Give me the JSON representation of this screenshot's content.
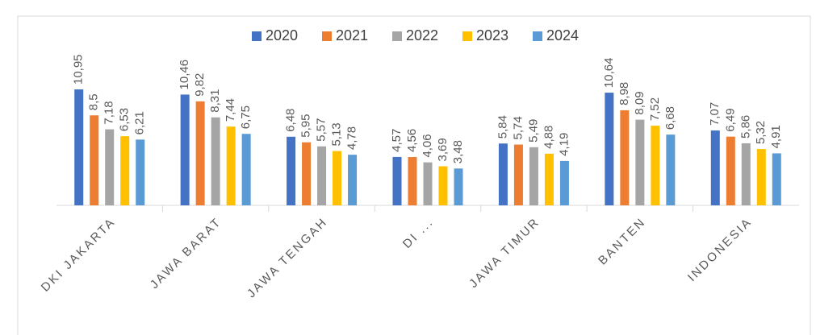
{
  "chart_data": {
    "type": "bar",
    "categories": [
      "DKI JAKARTA",
      "JAWA BARAT",
      "JAWA TENGAH",
      "DI ...",
      "JAWA TIMUR",
      "BANTEN",
      "INDONESIA"
    ],
    "series": [
      {
        "name": "2020",
        "color": "#4472c4",
        "values": [
          10.95,
          10.46,
          6.48,
          4.57,
          5.84,
          10.64,
          7.07
        ],
        "value_labels": [
          "10,95",
          "10,46",
          "6,48",
          "4,57",
          "5,84",
          "10,64",
          "7,07"
        ]
      },
      {
        "name": "2021",
        "color": "#ed7d31",
        "values": [
          8.5,
          9.82,
          5.95,
          4.56,
          5.74,
          8.98,
          6.49
        ],
        "value_labels": [
          "8,5",
          "9,82",
          "5,95",
          "4,56",
          "5,74",
          "8,98",
          "6,49"
        ]
      },
      {
        "name": "2022",
        "color": "#a5a5a5",
        "values": [
          7.18,
          8.31,
          5.57,
          4.06,
          5.49,
          8.09,
          5.86
        ],
        "value_labels": [
          "7,18",
          "8,31",
          "5,57",
          "4,06",
          "5,49",
          "8,09",
          "5,86"
        ]
      },
      {
        "name": "2023",
        "color": "#ffc000",
        "values": [
          6.53,
          7.44,
          5.13,
          3.69,
          4.88,
          7.52,
          5.32
        ],
        "value_labels": [
          "6,53",
          "7,44",
          "5,13",
          "3,69",
          "4,88",
          "7,52",
          "5,32"
        ]
      },
      {
        "name": "2024",
        "color": "#5b9bd5",
        "values": [
          6.21,
          6.75,
          4.78,
          3.48,
          4.19,
          6.68,
          4.91
        ],
        "value_labels": [
          "6,21",
          "6,75",
          "4,78",
          "3,48",
          "4,19",
          "6,68",
          "4,91"
        ]
      }
    ],
    "legend": "top"
  }
}
